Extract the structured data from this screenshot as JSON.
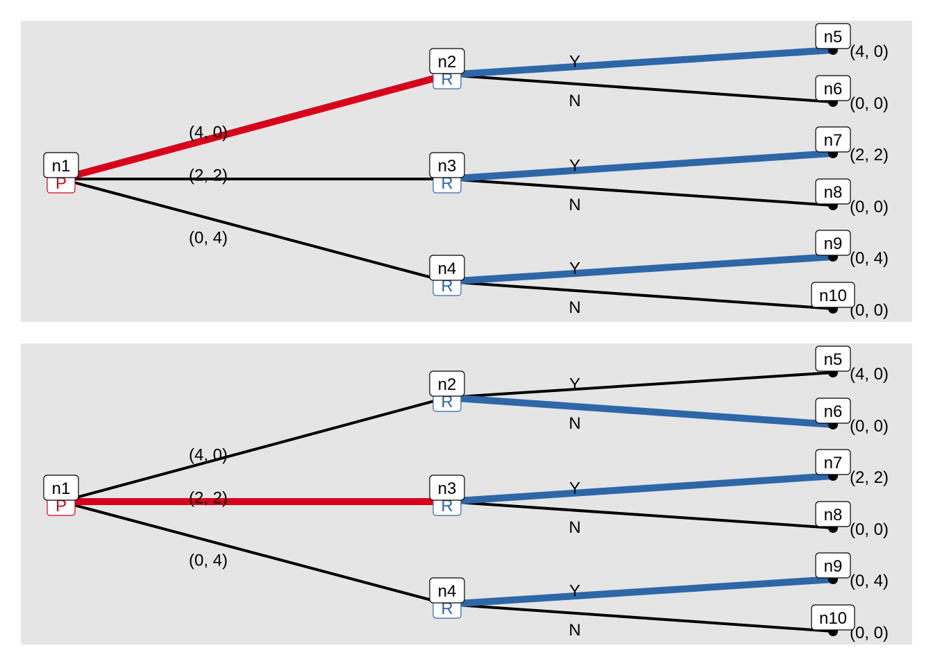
{
  "colors": {
    "red": "#d7001a",
    "blue": "#2e67a8",
    "black": "#000000",
    "background": "#e5e5e5"
  },
  "panels": [
    {
      "nodes": [
        {
          "id": "n1",
          "player": "P"
        },
        {
          "id": "n2",
          "player": "R"
        },
        {
          "id": "n3",
          "player": "R"
        },
        {
          "id": "n4",
          "player": "R"
        },
        {
          "id": "n5",
          "payoff": "(4, 0)"
        },
        {
          "id": "n6",
          "payoff": "(0, 0)"
        },
        {
          "id": "n7",
          "payoff": "(2, 2)"
        },
        {
          "id": "n8",
          "payoff": "(0, 0)"
        },
        {
          "id": "n9",
          "payoff": "(0, 4)"
        },
        {
          "id": "n10",
          "payoff": "(0, 0)"
        }
      ],
      "edges": [
        {
          "from": "n1",
          "to": "n2",
          "label": "(4, 0)",
          "highlight": "red"
        },
        {
          "from": "n1",
          "to": "n3",
          "label": "(2, 2)",
          "highlight": "none"
        },
        {
          "from": "n1",
          "to": "n4",
          "label": "(0, 4)",
          "highlight": "none"
        },
        {
          "from": "n2",
          "to": "n5",
          "label": "Y",
          "highlight": "blue"
        },
        {
          "from": "n2",
          "to": "n6",
          "label": "N",
          "highlight": "none"
        },
        {
          "from": "n3",
          "to": "n7",
          "label": "Y",
          "highlight": "blue"
        },
        {
          "from": "n3",
          "to": "n8",
          "label": "N",
          "highlight": "none"
        },
        {
          "from": "n4",
          "to": "n9",
          "label": "Y",
          "highlight": "blue"
        },
        {
          "from": "n4",
          "to": "n10",
          "label": "N",
          "highlight": "none"
        }
      ]
    },
    {
      "nodes": [
        {
          "id": "n1",
          "player": "P"
        },
        {
          "id": "n2",
          "player": "R"
        },
        {
          "id": "n3",
          "player": "R"
        },
        {
          "id": "n4",
          "player": "R"
        },
        {
          "id": "n5",
          "payoff": "(4, 0)"
        },
        {
          "id": "n6",
          "payoff": "(0, 0)"
        },
        {
          "id": "n7",
          "payoff": "(2, 2)"
        },
        {
          "id": "n8",
          "payoff": "(0, 0)"
        },
        {
          "id": "n9",
          "payoff": "(0, 4)"
        },
        {
          "id": "n10",
          "payoff": "(0, 0)"
        }
      ],
      "edges": [
        {
          "from": "n1",
          "to": "n2",
          "label": "(4, 0)",
          "highlight": "none"
        },
        {
          "from": "n1",
          "to": "n3",
          "label": "(2, 2)",
          "highlight": "red"
        },
        {
          "from": "n1",
          "to": "n4",
          "label": "(0, 4)",
          "highlight": "none"
        },
        {
          "from": "n2",
          "to": "n5",
          "label": "Y",
          "highlight": "none"
        },
        {
          "from": "n2",
          "to": "n6",
          "label": "N",
          "highlight": "blue"
        },
        {
          "from": "n3",
          "to": "n7",
          "label": "Y",
          "highlight": "blue"
        },
        {
          "from": "n3",
          "to": "n8",
          "label": "N",
          "highlight": "none"
        },
        {
          "from": "n4",
          "to": "n9",
          "label": "Y",
          "highlight": "blue"
        },
        {
          "from": "n4",
          "to": "n10",
          "label": "N",
          "highlight": "none"
        }
      ]
    }
  ]
}
